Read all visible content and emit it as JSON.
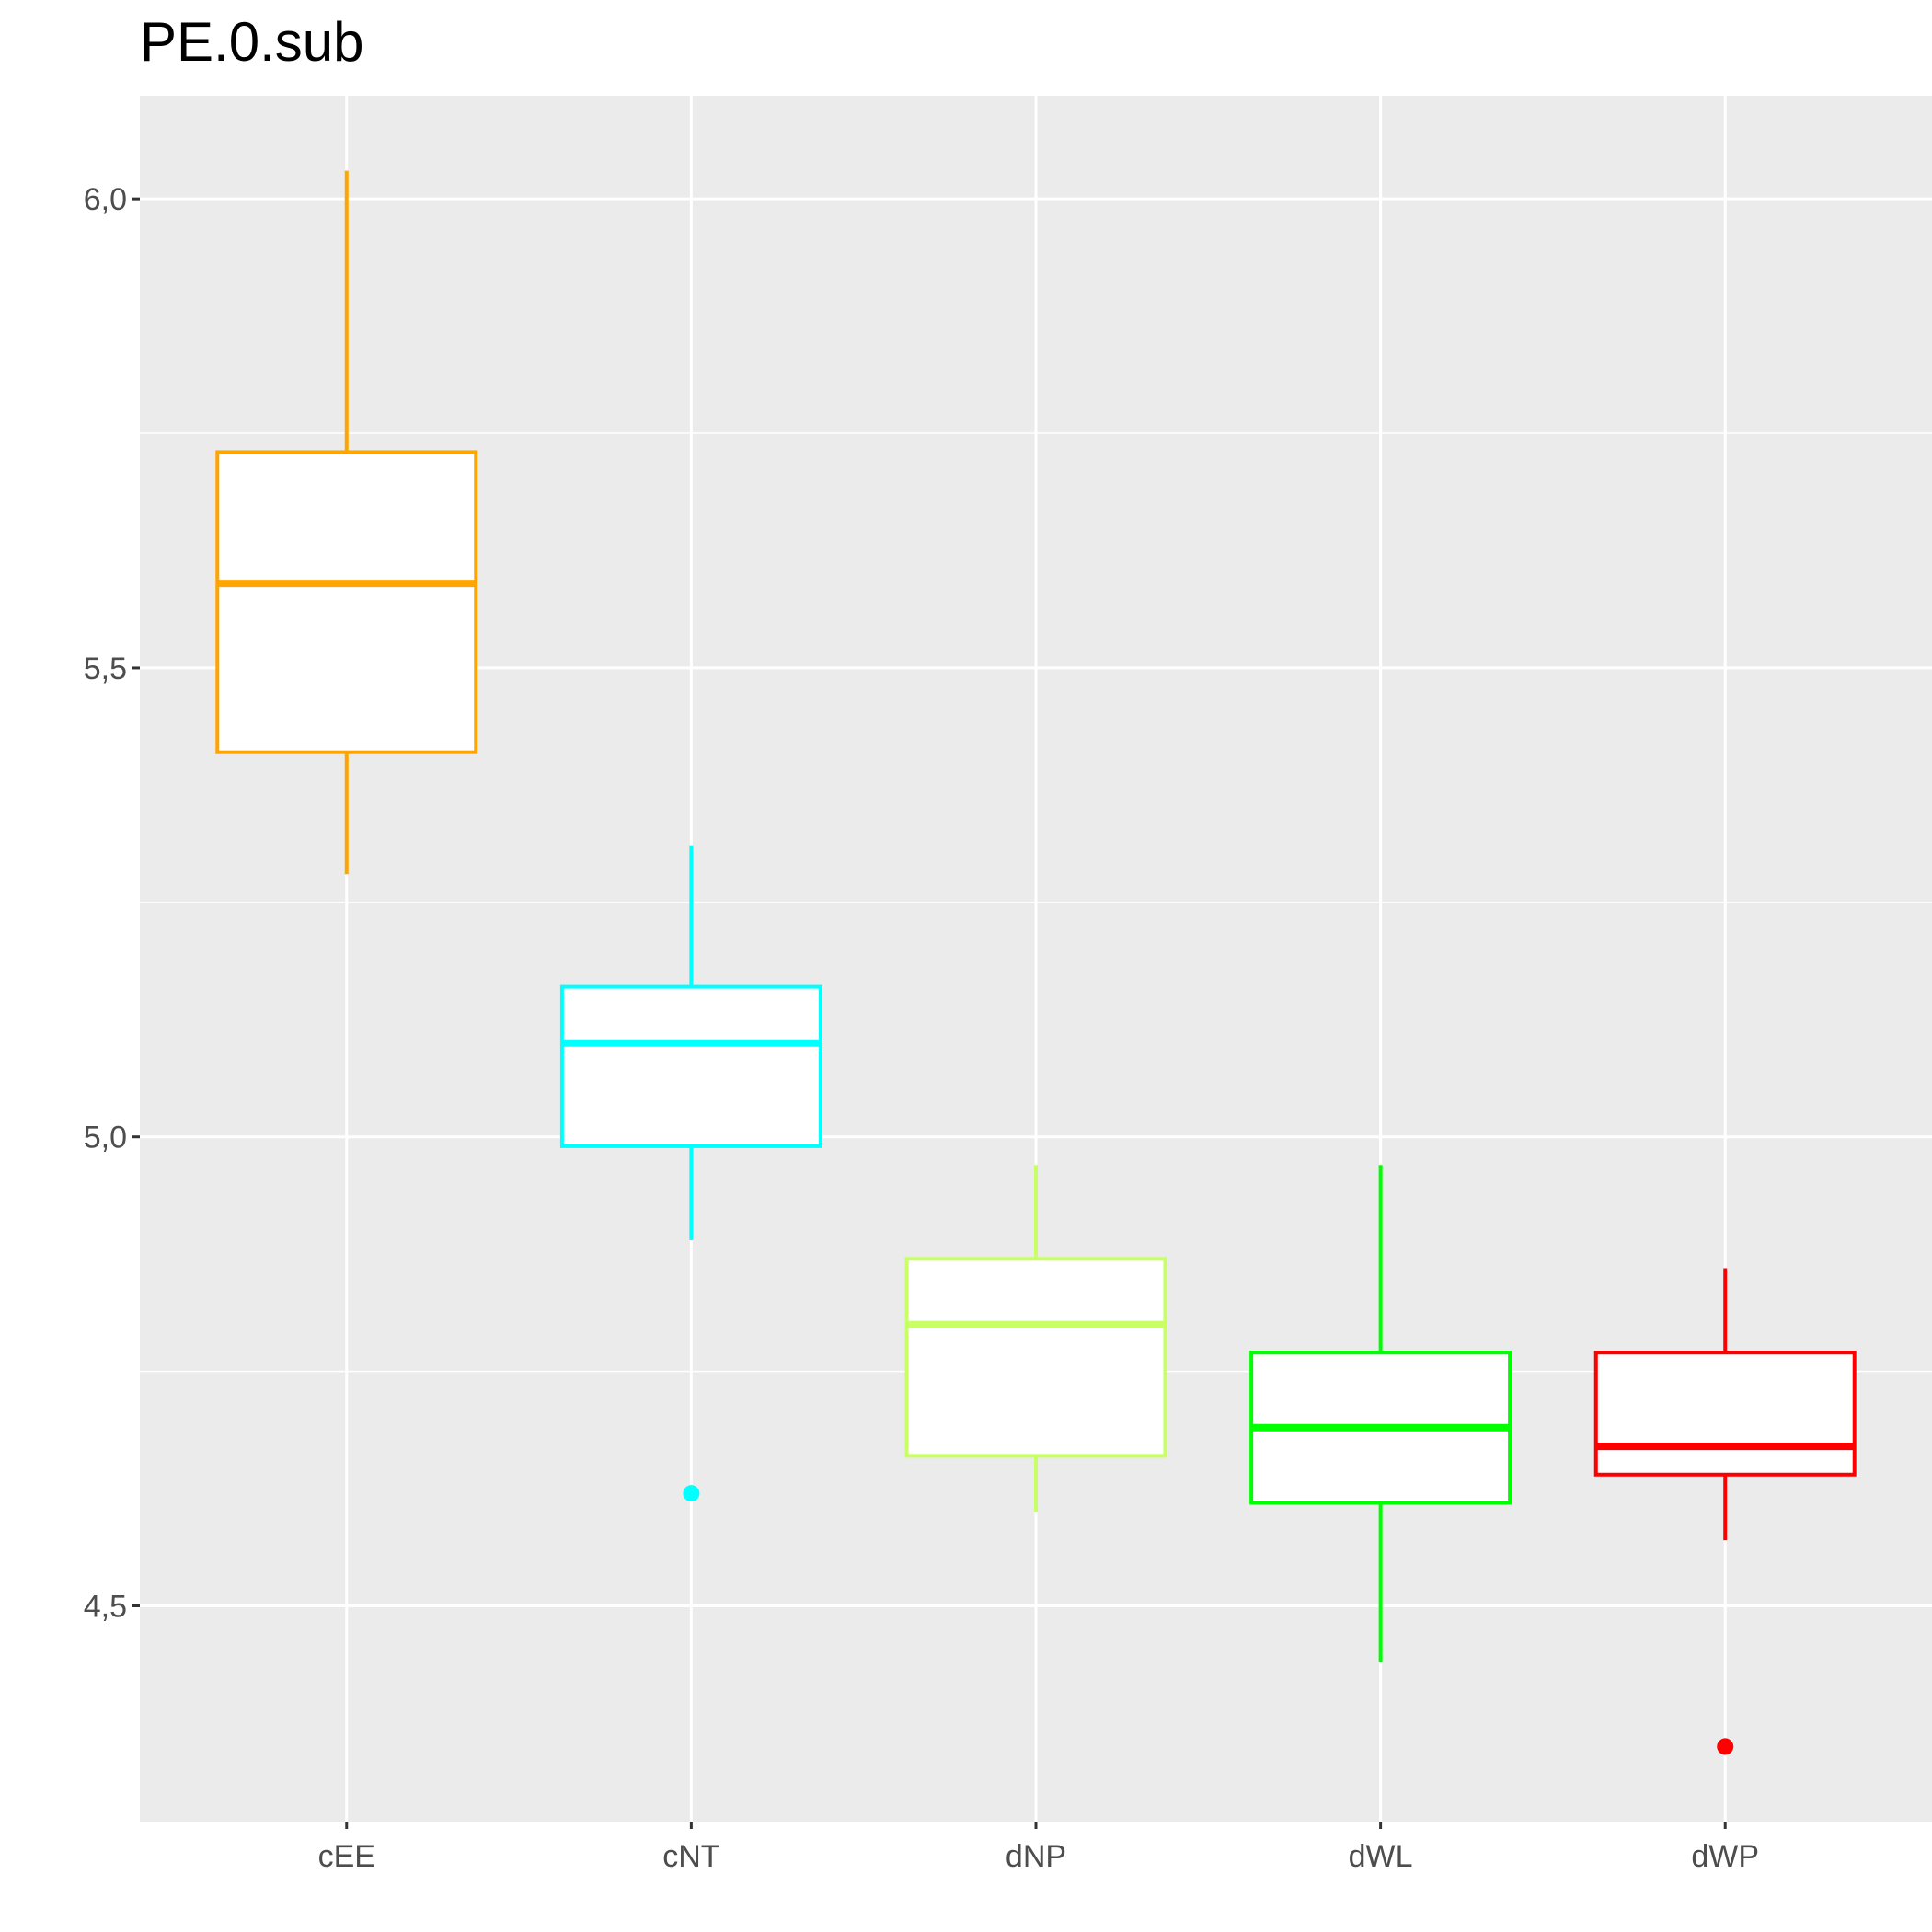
{
  "chart_data": {
    "type": "boxplot",
    "title": "PE.0.sub",
    "xlabel": "",
    "ylabel": "",
    "ylim": [
      4.27,
      6.11
    ],
    "y_ticks": [
      4.5,
      5.0,
      5.5,
      6.0
    ],
    "y_tick_labels": [
      "4,5",
      "5,0",
      "5,5",
      "6,0"
    ],
    "grid": true,
    "panel_background": "#ebebeb",
    "grid_color": "#ffffff",
    "categories": [
      "cEE",
      "cNT",
      "dNP",
      "dWL",
      "dWP"
    ],
    "series": [
      {
        "category": "cEE",
        "color": "#FFA500",
        "whisker_low": 5.28,
        "q1": 5.41,
        "median": 5.59,
        "q3": 5.73,
        "whisker_high": 6.03,
        "outliers": []
      },
      {
        "category": "cNT",
        "color": "#00FFFF",
        "whisker_low": 4.89,
        "q1": 4.99,
        "median": 5.1,
        "q3": 5.16,
        "whisker_high": 5.31,
        "outliers": [
          4.62
        ]
      },
      {
        "category": "dNP",
        "color": "#C8FF64",
        "whisker_low": 4.6,
        "q1": 4.66,
        "median": 4.8,
        "q3": 4.87,
        "whisker_high": 4.97,
        "outliers": []
      },
      {
        "category": "dWL",
        "color": "#00FF00",
        "whisker_low": 4.44,
        "q1": 4.61,
        "median": 4.69,
        "q3": 4.77,
        "whisker_high": 4.97,
        "outliers": []
      },
      {
        "category": "dWP",
        "color": "#FF0000",
        "whisker_low": 4.57,
        "q1": 4.64,
        "median": 4.67,
        "q3": 4.77,
        "whisker_high": 4.86,
        "outliers": [
          4.35
        ]
      }
    ]
  }
}
